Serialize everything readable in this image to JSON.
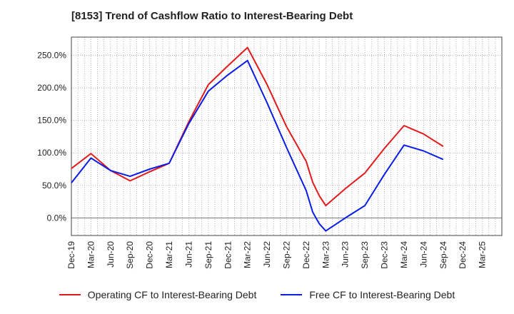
{
  "header": {
    "title": "[8153]  Trend of Cashflow Ratio to Interest-Bearing Debt"
  },
  "colors": {
    "operating": "#e31a1c",
    "free": "#0a1ee6",
    "grid": "#999999"
  },
  "chart_data": {
    "type": "line",
    "title": "[8153]  Trend of Cashflow Ratio to Interest-Bearing Debt",
    "xlabel": "",
    "ylabel": "",
    "x": [
      "Dec-19",
      "Mar-20",
      "Jun-20",
      "Sep-20",
      "Dec-20",
      "Mar-21",
      "Jun-21",
      "Sep-21",
      "Dec-21",
      "Mar-22",
      "Jun-22",
      "Sep-22",
      "Dec-22",
      "Mar-23",
      "Jun-23",
      "Sep-23",
      "Dec-23",
      "Mar-24",
      "Jun-24",
      "Sep-24",
      "Dec-24",
      "Mar-25"
    ],
    "ylim": [
      -27,
      278
    ],
    "yticks": [
      0,
      50,
      100,
      150,
      200,
      250
    ],
    "ytick_labels": [
      "0.0%",
      "50.0%",
      "100.0%",
      "150.0%",
      "200.0%",
      "250.0%"
    ],
    "grid": true,
    "legend_position": "bottom",
    "series": [
      {
        "name": "Operating CF to Interest-Bearing Debt",
        "color": "#e31a1c",
        "points": [
          [
            0,
            76
          ],
          [
            1,
            99
          ],
          [
            2,
            73
          ],
          [
            3,
            57
          ],
          [
            4,
            71
          ],
          [
            5,
            84
          ],
          [
            6,
            148
          ],
          [
            7,
            205
          ],
          [
            8,
            234
          ],
          [
            9,
            262
          ],
          [
            10,
            205
          ],
          [
            11,
            140
          ],
          [
            12,
            87
          ],
          [
            12.33,
            55
          ],
          [
            12.67,
            34
          ],
          [
            13,
            19
          ],
          [
            14,
            45
          ],
          [
            15,
            69
          ],
          [
            16,
            107
          ],
          [
            17,
            142
          ],
          [
            18,
            129
          ],
          [
            19,
            110
          ]
        ]
      },
      {
        "name": "Free CF to Interest-Bearing Debt",
        "color": "#0a1ee6",
        "points": [
          [
            0,
            54
          ],
          [
            1,
            92
          ],
          [
            2,
            73
          ],
          [
            3,
            64
          ],
          [
            4,
            75
          ],
          [
            5,
            84
          ],
          [
            6,
            145
          ],
          [
            7,
            195
          ],
          [
            8,
            220
          ],
          [
            9,
            242
          ],
          [
            10,
            177
          ],
          [
            11,
            108
          ],
          [
            12,
            42
          ],
          [
            12.33,
            9
          ],
          [
            12.67,
            -9
          ],
          [
            13,
            -20
          ],
          [
            14,
            0
          ],
          [
            15,
            19
          ],
          [
            16,
            67
          ],
          [
            17,
            112
          ],
          [
            18,
            103
          ],
          [
            19,
            90
          ]
        ]
      }
    ]
  }
}
